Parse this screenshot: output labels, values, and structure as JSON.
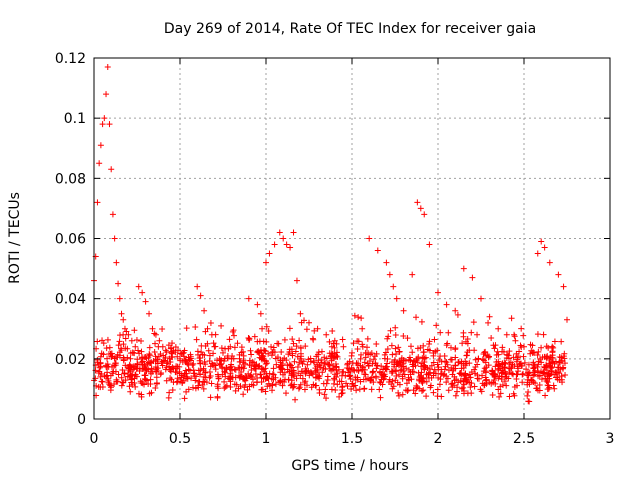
{
  "chart_data": {
    "type": "scatter",
    "title": "Day 269 of 2014, Rate Of TEC Index for receiver gaia",
    "xlabel": "GPS time / hours",
    "ylabel": "ROTI / TECUs",
    "xlim": [
      0,
      3
    ],
    "ylim": [
      0,
      0.12
    ],
    "x_ticks": [
      "0",
      "0.5",
      "1",
      "1.5",
      "2",
      "2.5",
      "3"
    ],
    "y_ticks": [
      "0",
      "0.02",
      "0.04",
      "0.06",
      "0.08",
      "0.1",
      "0.12"
    ],
    "grid": true,
    "marker": "+",
    "marker_color": "#ff0000",
    "series": [
      {
        "x": [
          0.0,
          0.01,
          0.02,
          0.03,
          0.04,
          0.05,
          0.06,
          0.07,
          0.08,
          0.09,
          0.1,
          0.11,
          0.12,
          0.13,
          0.14,
          0.15,
          0.16,
          0.17,
          0.18,
          0.2,
          0.22,
          0.24,
          0.26,
          0.28,
          0.3,
          0.32,
          0.34,
          0.36,
          0.38,
          0.4,
          0.45,
          0.5,
          0.55,
          0.6,
          0.62,
          0.64,
          0.66,
          0.7,
          0.75,
          0.8,
          0.85,
          0.9,
          0.95,
          0.97,
          1.0,
          1.02,
          1.05,
          1.08,
          1.1,
          1.12,
          1.14,
          1.16,
          1.18,
          1.2,
          1.25,
          1.3,
          1.35,
          1.4,
          1.45,
          1.5,
          1.55,
          1.6,
          1.65,
          1.7,
          1.72,
          1.74,
          1.76,
          1.8,
          1.85,
          1.88,
          1.9,
          1.92,
          1.95,
          2.0,
          2.05,
          2.1,
          2.15,
          2.2,
          2.25,
          2.3,
          2.35,
          2.4,
          2.45,
          2.5,
          2.55,
          2.58,
          2.6,
          2.62,
          2.65,
          2.7,
          2.73,
          2.75
        ],
        "y": [
          0.046,
          0.054,
          0.072,
          0.085,
          0.091,
          0.098,
          0.1,
          0.108,
          0.117,
          0.098,
          0.083,
          0.068,
          0.06,
          0.052,
          0.045,
          0.04,
          0.035,
          0.033,
          0.03,
          0.028,
          0.026,
          0.024,
          0.044,
          0.042,
          0.039,
          0.035,
          0.03,
          0.028,
          0.026,
          0.024,
          0.022,
          0.02,
          0.018,
          0.044,
          0.041,
          0.036,
          0.03,
          0.024,
          0.022,
          0.02,
          0.019,
          0.04,
          0.038,
          0.035,
          0.052,
          0.055,
          0.058,
          0.062,
          0.06,
          0.058,
          0.057,
          0.062,
          0.046,
          0.035,
          0.032,
          0.03,
          0.028,
          0.026,
          0.024,
          0.022,
          0.02,
          0.06,
          0.056,
          0.052,
          0.048,
          0.044,
          0.04,
          0.036,
          0.048,
          0.072,
          0.07,
          0.068,
          0.058,
          0.042,
          0.038,
          0.036,
          0.05,
          0.047,
          0.04,
          0.034,
          0.03,
          0.028,
          0.026,
          0.024,
          0.022,
          0.055,
          0.059,
          0.057,
          0.052,
          0.048,
          0.044,
          0.033
        ],
        "baseline_note": ""
      }
    ]
  }
}
